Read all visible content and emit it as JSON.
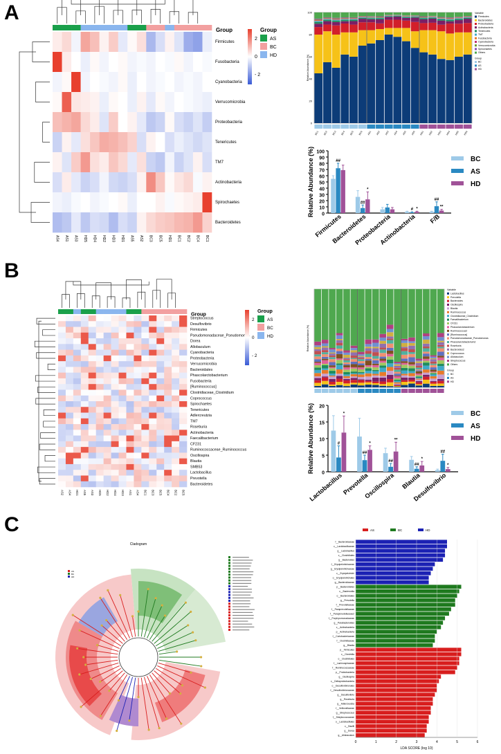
{
  "panels": {
    "A": "A",
    "B": "B",
    "C": "C"
  },
  "colors": {
    "AS": "#1aa04b",
    "BC": "#f2a0a0",
    "HD": "#8ab6ee",
    "bar_BC": "#9ecae8",
    "bar_AS": "#2a89c2",
    "bar_HD": "#a05298",
    "heat_hi": "#e8402e",
    "heat_lo": "#3a5bd6",
    "lda_AS": "#d81e1e",
    "lda_BC": "#1f7a1f",
    "lda_HD": "#1c22b4"
  },
  "legend": {
    "group_title": "Group",
    "groups": [
      "AS",
      "BC",
      "HD"
    ],
    "scale": [
      "2",
      "0",
      "- 2"
    ]
  },
  "heatmapA": {
    "group_label": "Group",
    "rows": [
      "Firmicutes",
      "Fusobacteria",
      "Cyanobacteria",
      "Verrucomicrobia",
      "Proteobacteria",
      "Tenericutes",
      "TM7",
      "Actinobacteria",
      "Spirochaetes",
      "Bacteroidetes"
    ],
    "cols": [
      "AS4",
      "AS1",
      "AS3",
      "HD5",
      "HD4",
      "HD2",
      "HD3",
      "HD1",
      "AS5",
      "AS2",
      "BC3",
      "BC5",
      "HD1",
      "BC1",
      "BC2",
      "BC4",
      "BC1"
    ],
    "col_groups": [
      "AS",
      "AS",
      "AS",
      "HD",
      "HD",
      "HD",
      "HD",
      "HD",
      "AS",
      "AS",
      "BC",
      "BC",
      "HD",
      "BC",
      "BC",
      "BC",
      "BC"
    ],
    "values": [
      [
        0.3,
        0.6,
        -0.2,
        1.4,
        1.0,
        0.2,
        0.8,
        -0.4,
        0.1,
        0.5,
        -1.3,
        -0.6,
        0.2,
        -0.5,
        -1.5,
        -1.7,
        -0.3
      ],
      [
        3.5,
        0.3,
        0.0,
        -0.3,
        0.1,
        -0.2,
        0.0,
        0.1,
        -0.2,
        -0.1,
        -0.2,
        0.0,
        -0.1,
        0.1,
        -0.2,
        0.0,
        -0.1
      ],
      [
        -0.2,
        0.1,
        3.4,
        -0.2,
        0.0,
        -0.1,
        -0.2,
        0.1,
        -0.3,
        0.0,
        -0.2,
        -0.1,
        0.0,
        -0.2,
        -0.1,
        -0.2,
        0.0
      ],
      [
        0.1,
        2.5,
        0.4,
        0.3,
        0.2,
        -0.3,
        0.1,
        0.0,
        -0.3,
        0.2,
        -0.4,
        0.1,
        -0.2,
        0.0,
        -0.1,
        -0.2,
        -0.3
      ],
      [
        1.0,
        1.2,
        1.4,
        0.6,
        0.3,
        -0.5,
        0.8,
        0.0,
        0.2,
        -0.4,
        -1.0,
        -0.8,
        0.1,
        -0.6,
        -0.8,
        -0.5,
        -0.9
      ],
      [
        -0.8,
        0.2,
        -0.4,
        0.5,
        0.9,
        1.3,
        1.2,
        1.0,
        0.7,
        -0.6,
        0.2,
        0.0,
        -0.6,
        -0.3,
        -0.5,
        -0.7,
        -0.5
      ],
      [
        0.2,
        -0.5,
        0.8,
        1.6,
        0.5,
        0.3,
        0.9,
        0.6,
        -0.4,
        0.5,
        -0.8,
        -1.0,
        -0.2,
        -0.8,
        -0.5,
        0.2,
        -0.6
      ],
      [
        -0.6,
        0.3,
        -0.4,
        -0.8,
        -0.6,
        -0.2,
        -0.7,
        -0.8,
        -0.6,
        0.2,
        1.8,
        0.9,
        0.1,
        0.4,
        0.6,
        -0.1,
        0.2
      ],
      [
        -0.2,
        -0.3,
        -0.1,
        0.0,
        -0.2,
        -0.1,
        0.0,
        0.1,
        -0.3,
        0.0,
        0.0,
        0.2,
        -0.1,
        0.1,
        0.2,
        0.3,
        3.2
      ],
      [
        -1.2,
        -1.0,
        -0.4,
        -1.0,
        -0.6,
        -0.7,
        -1.2,
        -0.6,
        -0.8,
        0.2,
        0.6,
        0.8,
        0.9,
        1.1,
        1.2,
        1.6,
        0.7
      ]
    ]
  },
  "heatmapB": {
    "group_label": "Group",
    "rows": [
      "Streptococcus",
      "Desulfovibrio",
      "Firmicutes",
      "Pseudomonadaceae_Pseudomonas",
      "Dorea",
      "Allobaculum",
      "Cyanobacteria",
      "Proteobacteria",
      "Verrucomicrobia",
      "Bacteroidales",
      "Phascolarctobacterium",
      "Fusobacteria",
      "[Ruminococcus]",
      "Clostridiaceae_Clostridium",
      "Coprococcus",
      "Spirochaetes",
      "Tenericutes",
      "Adlercreutzia",
      "TM7",
      "Roseburia",
      "Actinobacteria",
      "Faecalibacterium",
      "CF231",
      "Ruminococcaceae_Ruminococcus",
      "Oscillospira",
      "Blautia",
      "SMB53",
      "Lactobacillus",
      "Prevotella",
      "Bacteroidetes"
    ],
    "cols": [
      "AS2",
      "AS4",
      "HD1",
      "AS5",
      "AS3",
      "HD5",
      "HD2",
      "HD4",
      "HD3",
      "AS1",
      "AS4",
      "BC1",
      "BC3",
      "BC5",
      "BC4",
      "BC2",
      "BC5"
    ],
    "col_groups": [
      "AS",
      "AS",
      "HD",
      "AS",
      "AS",
      "HD",
      "HD",
      "HD",
      "HD",
      "AS",
      "AS",
      "BC",
      "BC",
      "BC",
      "BC",
      "BC",
      "BC"
    ]
  },
  "stackedA": {
    "yticks": [
      "0",
      "20",
      "40",
      "60",
      "80",
      "100"
    ],
    "ylabel": "Relative Abundance (%)",
    "xlabels": [
      "BC1",
      "BC2",
      "BC3",
      "BC4",
      "BC5",
      "BC6",
      "AS1",
      "AS2",
      "AS3",
      "AS4",
      "AS5",
      "AS6",
      "HD1",
      "HD2",
      "HD3",
      "HD4",
      "HD5",
      "HD6"
    ],
    "col_groups": [
      "BC",
      "BC",
      "BC",
      "BC",
      "BC",
      "BC",
      "AS",
      "AS",
      "AS",
      "AS",
      "AS",
      "AS",
      "HD",
      "HD",
      "HD",
      "HD",
      "HD",
      "HD"
    ],
    "legend_title": "Variable",
    "legend": [
      "Firmicutes",
      "Bacteroidetes",
      "Proteobacteria",
      "Actinobacteria",
      "Tenericutes",
      "TM7",
      "Fusobacteria",
      "Cyanobacteria",
      "Verrucomicrobia",
      "Spirochaetes",
      "Others"
    ],
    "legend_colors": [
      "#0c3c78",
      "#f6c218",
      "#d21f2a",
      "#7a1f66",
      "#1e8c5c",
      "#40a8c8",
      "#e87a2a",
      "#c03070",
      "#6a9a30",
      "#8a4fb0",
      "#4fa84f"
    ],
    "group_title": "Group",
    "groups": [
      "BC",
      "AS",
      "HD"
    ]
  },
  "stackedB": {
    "ylabel": "Relative Abundance (%)",
    "legend_title": "Variable",
    "legend": [
      "Lactobacillus",
      "Prevotella",
      "Bacteroides",
      "Oscillospira",
      "Blautia",
      "Ruminococcus",
      "Clostridiaceae_Clostridium",
      "Faecalibacterium",
      "CF231",
      "Phascolarctobacterium",
      "Ruminococcus2",
      "[Ruminococcus]",
      "Pseudomonadaceae_Pseudomonas",
      "Phascolarctobacterium2",
      "Roseburia",
      "Bacteroides2",
      "Coprococcus",
      "Allobaculum",
      "Streptococcus",
      "Others"
    ],
    "legend_colors": [
      "#0c3c78",
      "#f6c218",
      "#d21f2a",
      "#7a1f66",
      "#c8a0d0",
      "#e87a2a",
      "#40a8c8",
      "#1e8c5c",
      "#a0c860",
      "#e0609a",
      "#805020",
      "#6070c0",
      "#f09070",
      "#50b0a0",
      "#c05050",
      "#9070b0",
      "#d0b040",
      "#7090d0",
      "#b04080",
      "#4fa84f"
    ],
    "group_title": "Group",
    "groups": [
      "BC",
      "AS",
      "HD"
    ]
  },
  "chart_data": [
    {
      "type": "bar",
      "title": "",
      "ylabel": "Relative Abundance (%)",
      "ylim": [
        0,
        100
      ],
      "yticks": [
        "0",
        "10",
        "20",
        "30",
        "40",
        "50",
        "60",
        "70",
        "80",
        "90",
        "100"
      ],
      "categories": [
        "Firmicutes",
        "Bacteroidetes",
        "Proteobacteria",
        "Actinobacteria",
        "F/B"
      ],
      "series": [
        {
          "name": "BC",
          "values": [
            55,
            26,
            6,
            2,
            2
          ],
          "err": [
            5,
            10,
            3,
            1,
            1
          ],
          "sig": [
            "",
            "",
            "",
            "",
            ""
          ]
        },
        {
          "name": "AS",
          "values": [
            72,
            8,
            9,
            1,
            11
          ],
          "err": [
            8,
            5,
            5,
            1,
            7
          ],
          "sig": [
            "##",
            "##",
            "",
            "#",
            "##"
          ]
        },
        {
          "name": "HD",
          "values": [
            69,
            22,
            6,
            2,
            4
          ],
          "err": [
            8,
            12,
            3,
            1,
            2
          ],
          "sig": [
            "",
            "*",
            "",
            "*",
            "**"
          ]
        }
      ]
    },
    {
      "type": "bar",
      "title": "",
      "ylabel": "Relative Abundance (%)",
      "ylim": [
        0,
        20
      ],
      "yticks": [
        "0",
        "5",
        "10",
        "15",
        "20"
      ],
      "categories": [
        "Lactobacillus",
        "Prevotella",
        "Oscillospira",
        "Blautia",
        "Desulfovibrio"
      ],
      "series": [
        {
          "name": "BC",
          "values": [
            12.4,
            10.6,
            5.6,
            3.6,
            0.5
          ],
          "err": [
            4.5,
            5.5,
            1.5,
            1.0,
            0.3
          ],
          "sig": [
            "",
            "",
            "",
            "",
            ""
          ]
        },
        {
          "name": "AS",
          "values": [
            4.3,
            3.5,
            1.5,
            0.9,
            3.3
          ],
          "err": [
            3.5,
            1.5,
            1.0,
            0.6,
            2.0
          ],
          "sig": [
            "#",
            "##",
            "##",
            "##",
            "##"
          ]
        },
        {
          "name": "HD",
          "values": [
            11.8,
            6.6,
            6.1,
            1.9,
            0.8
          ],
          "err": [
            5.0,
            1.2,
            2.8,
            1.2,
            0.5
          ],
          "sig": [
            "*",
            "*",
            "**",
            "*",
            "*"
          ]
        }
      ]
    },
    {
      "type": "bar",
      "title": "",
      "xlabel": "LDA SCORE (log 10)",
      "xlim": [
        0,
        6
      ],
      "xticks": [
        "0",
        "1",
        "2",
        "3",
        "4",
        "5",
        "6"
      ],
      "legend": [
        "AS",
        "BC",
        "HD"
      ],
      "categories": [
        "f__Bacteroidaceae",
        "c__Lactobacillaceae",
        "g__Lactobacillus",
        "c__Clostridiales",
        "g__Bacteroides",
        "f__Erysipelotrichaceae",
        "g__Erysipelotrichaceae",
        "c__Erysipelotrichi",
        "o__Erysipelotrichales",
        "g__Bacteroidaceae",
        "p__Bacteroidetes",
        "c__Bacteroidia",
        "o__Bacteroidales",
        "g__Prevotella",
        "f__Prevotellaceae",
        "f__Paraprevotellaceae",
        "f__Paraprevotellaceae2",
        "f__Porphyromonadaceae",
        "g__Parabacteroides",
        "c__Actinobacteria",
        "p__Actinobacteria",
        "f__Coriobacteriaceae",
        "f__Clostridiaceae",
        "g__Blautia",
        "p__Firmicutes",
        "c__Clostridia",
        "o__Clostridiales",
        "f__Lachnospiraceae",
        "f__Ruminococcaceae",
        "p__Proteobacteria",
        "g__Oscillospira",
        "c__Deltaproteobacteria",
        "o__Desulfovibrionales",
        "f__Desulfovibrionaceae",
        "g__Desulfovibrio",
        "g__Roseburia",
        "g__Adlercreutzia",
        "f__Veillonellaceae",
        "g__Streptococcus",
        "f__Streptococcaceae",
        "o__Lactobacillales",
        "c__Bacilli",
        "g__Dorea",
        "g__Allobaculum"
      ],
      "groups": [
        "HD",
        "HD",
        "HD",
        "HD",
        "HD",
        "HD",
        "HD",
        "HD",
        "HD",
        "HD",
        "BC",
        "BC",
        "BC",
        "BC",
        "BC",
        "BC",
        "BC",
        "BC",
        "BC",
        "BC",
        "BC",
        "BC",
        "BC",
        "BC",
        "AS",
        "AS",
        "AS",
        "AS",
        "AS",
        "AS",
        "AS",
        "AS",
        "AS",
        "AS",
        "AS",
        "AS",
        "AS",
        "AS",
        "AS",
        "AS",
        "AS",
        "AS",
        "AS",
        "AS"
      ],
      "values": [
        4.5,
        4.5,
        4.4,
        4.4,
        4.3,
        3.9,
        3.8,
        3.7,
        3.6,
        3.6,
        5.2,
        5.1,
        5.0,
        4.9,
        4.9,
        4.7,
        4.6,
        4.4,
        4.3,
        4.2,
        4.0,
        3.9,
        3.9,
        3.8,
        5.2,
        5.2,
        5.1,
        5.1,
        5.0,
        4.9,
        4.2,
        4.1,
        4.0,
        4.0,
        3.9,
        3.8,
        3.8,
        3.7,
        3.7,
        3.6,
        3.6,
        3.5,
        3.5,
        3.4
      ]
    }
  ],
  "cladogram": {
    "title": "Cladogram",
    "legend": [
      "AS",
      "BC",
      "HD"
    ]
  }
}
